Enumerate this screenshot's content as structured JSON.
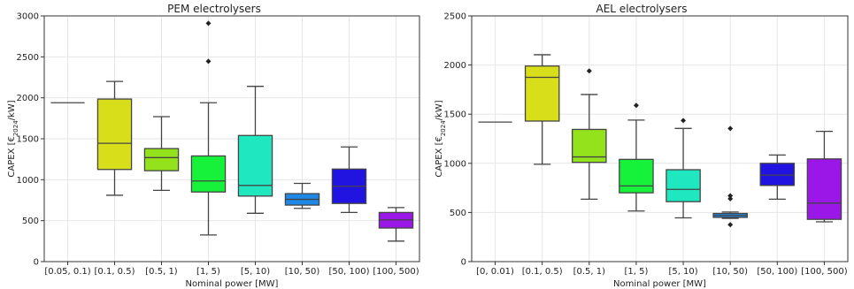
{
  "chart_data": [
    {
      "type": "box",
      "title": "PEM electrolysers",
      "xlabel": "Nominal power [MW]",
      "ylabel_main": "CAPEX [€",
      "ylabel_sub": "2024",
      "ylabel_tail": "/kW]",
      "ylim": [
        0,
        3000
      ],
      "yticks": [
        0,
        500,
        1000,
        1500,
        2000,
        2500,
        3000
      ],
      "grid": true,
      "categories": [
        "[0.05, 0.1)",
        "[0.1, 0.5)",
        "[0.5, 1)",
        "[1, 5)",
        "[5, 10)",
        "[10, 50)",
        "[50, 100)",
        "[100, 500)"
      ],
      "boxes": [
        {
          "color": "#7a7a7a",
          "min": 1940,
          "q1": 1940,
          "median": 1940,
          "q3": 1940,
          "max": 1940,
          "outliers": []
        },
        {
          "color": "#d9de1a",
          "min": 810,
          "q1": 1125,
          "median": 1445,
          "q3": 1985,
          "max": 2200,
          "outliers": []
        },
        {
          "color": "#93e21c",
          "min": 870,
          "q1": 1110,
          "median": 1270,
          "q3": 1380,
          "max": 1770,
          "outliers": []
        },
        {
          "color": "#16f23a",
          "min": 325,
          "q1": 850,
          "median": 985,
          "q3": 1290,
          "max": 1940,
          "outliers": [
            2445,
            2910
          ]
        },
        {
          "color": "#1fe8c0",
          "min": 590,
          "q1": 800,
          "median": 930,
          "q3": 1540,
          "max": 2140,
          "outliers": []
        },
        {
          "color": "#1e88e6",
          "min": 650,
          "q1": 690,
          "median": 760,
          "q3": 830,
          "max": 955,
          "outliers": []
        },
        {
          "color": "#2114e0",
          "min": 600,
          "q1": 710,
          "median": 920,
          "q3": 1130,
          "max": 1400,
          "outliers": []
        },
        {
          "color": "#9b17e8",
          "min": 250,
          "q1": 410,
          "median": 510,
          "q3": 600,
          "max": 660,
          "outliers": []
        }
      ]
    },
    {
      "type": "box",
      "title": "AEL electrolysers",
      "xlabel": "Nominal power [MW]",
      "ylabel_main": "CAPEX [€",
      "ylabel_sub": "2024",
      "ylabel_tail": "/kW]",
      "ylim": [
        0,
        2500
      ],
      "yticks": [
        0,
        500,
        1000,
        1500,
        2000,
        2500
      ],
      "grid": true,
      "categories": [
        "[0, 0.01)",
        "[0.1, 0.5)",
        "[0.5, 1)",
        "[1, 5)",
        "[5, 10)",
        "[10, 50)",
        "[50, 100)",
        "[100, 500)"
      ],
      "boxes": [
        {
          "color": "#7a7a7a",
          "min": 1420,
          "q1": 1420,
          "median": 1420,
          "q3": 1420,
          "max": 1420,
          "outliers": []
        },
        {
          "color": "#d9de1a",
          "min": 990,
          "q1": 1430,
          "median": 1875,
          "q3": 1990,
          "max": 2105,
          "outliers": []
        },
        {
          "color": "#93e21c",
          "min": 635,
          "q1": 1010,
          "median": 1065,
          "q3": 1345,
          "max": 1700,
          "outliers": [
            1940
          ]
        },
        {
          "color": "#16f23a",
          "min": 515,
          "q1": 700,
          "median": 770,
          "q3": 1040,
          "max": 1440,
          "outliers": [
            1590
          ]
        },
        {
          "color": "#1fe8c0",
          "min": 445,
          "q1": 610,
          "median": 735,
          "q3": 935,
          "max": 1355,
          "outliers": [
            1435
          ]
        },
        {
          "color": "#1e88e6",
          "min": 440,
          "q1": 450,
          "median": 470,
          "q3": 490,
          "max": 505,
          "outliers": [
            375,
            640,
            670,
            1355
          ]
        },
        {
          "color": "#2114e0",
          "min": 635,
          "q1": 775,
          "median": 880,
          "q3": 1000,
          "max": 1085,
          "outliers": []
        },
        {
          "color": "#9b17e8",
          "min": 405,
          "q1": 430,
          "median": 595,
          "q3": 1045,
          "max": 1325,
          "outliers": []
        }
      ]
    }
  ]
}
